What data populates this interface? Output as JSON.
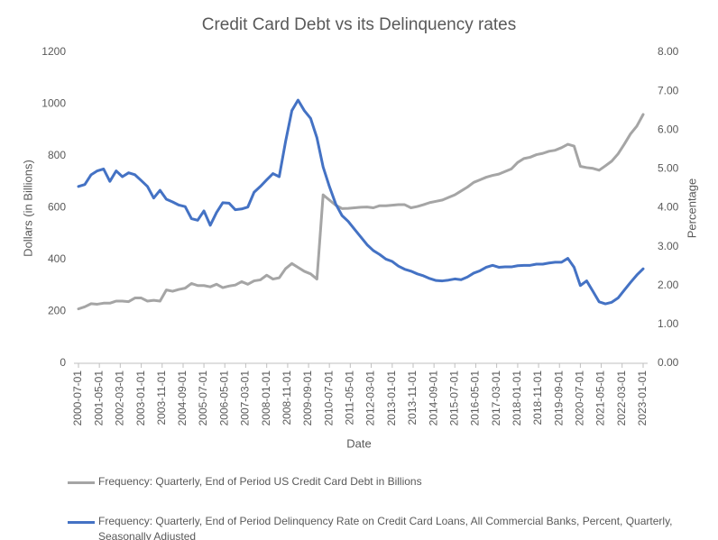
{
  "chart_data": {
    "type": "line",
    "title": "Credit Card Debt vs its Delinquency rates",
    "x_label": "Date",
    "y_label": "Dollars (in Billions)",
    "y2_label": "Percentage",
    "x": [
      "2000-07-01",
      "2000-10-01",
      "2001-01-01",
      "2001-04-01",
      "2001-07-01",
      "2001-10-01",
      "2002-01-01",
      "2002-04-01",
      "2002-07-01",
      "2002-10-01",
      "2003-01-01",
      "2003-04-01",
      "2003-07-01",
      "2003-10-01",
      "2004-01-01",
      "2004-04-01",
      "2004-07-01",
      "2004-10-01",
      "2005-01-01",
      "2005-04-01",
      "2005-07-01",
      "2005-10-01",
      "2006-01-01",
      "2006-04-01",
      "2006-07-01",
      "2006-10-01",
      "2007-01-01",
      "2007-04-01",
      "2007-07-01",
      "2007-10-01",
      "2008-01-01",
      "2008-04-01",
      "2008-07-01",
      "2008-10-01",
      "2009-01-01",
      "2009-04-01",
      "2009-07-01",
      "2009-10-01",
      "2010-01-01",
      "2010-04-01",
      "2010-07-01",
      "2010-10-01",
      "2011-01-01",
      "2011-04-01",
      "2011-07-01",
      "2011-10-01",
      "2012-01-01",
      "2012-04-01",
      "2012-07-01",
      "2012-10-01",
      "2013-01-01",
      "2013-04-01",
      "2013-07-01",
      "2013-10-01",
      "2014-01-01",
      "2014-04-01",
      "2014-07-01",
      "2014-10-01",
      "2015-01-01",
      "2015-04-01",
      "2015-07-01",
      "2015-10-01",
      "2016-01-01",
      "2016-04-01",
      "2016-07-01",
      "2016-10-01",
      "2017-01-01",
      "2017-04-01",
      "2017-07-01",
      "2017-10-01",
      "2018-01-01",
      "2018-04-01",
      "2018-07-01",
      "2018-10-01",
      "2019-01-01",
      "2019-04-01",
      "2019-07-01",
      "2019-10-01",
      "2020-01-01",
      "2020-04-01",
      "2020-07-01",
      "2020-10-01",
      "2021-01-01",
      "2021-04-01",
      "2021-07-01",
      "2021-10-01",
      "2022-01-01",
      "2022-04-01",
      "2022-07-01",
      "2022-10-01",
      "2023-01-01"
    ],
    "xlim": [
      "2000-07-01",
      "2023-01-01"
    ],
    "xticks": [
      "2000-07-01",
      "2001-05-01",
      "2002-03-01",
      "2003-01-01",
      "2003-11-01",
      "2004-09-01",
      "2005-07-01",
      "2006-05-01",
      "2007-03-01",
      "2008-01-01",
      "2008-11-01",
      "2009-09-01",
      "2010-07-01",
      "2011-05-01",
      "2012-03-01",
      "2013-01-01",
      "2013-11-01",
      "2014-09-01",
      "2015-07-01",
      "2016-05-01",
      "2017-03-01",
      "2018-01-01",
      "2018-11-01",
      "2019-09-01",
      "2020-07-01",
      "2021-05-01",
      "2022-03-01",
      "2023-01-01"
    ],
    "ylim": [
      0,
      1200
    ],
    "yticks": [
      0,
      200,
      400,
      600,
      800,
      1000,
      1200
    ],
    "y2lim": [
      0,
      8
    ],
    "y2ticks": [
      {
        "value": 0,
        "label": "0.00"
      },
      {
        "value": 1,
        "label": "1.00"
      },
      {
        "value": 2,
        "label": "2.00"
      },
      {
        "value": 3,
        "label": "3.00"
      },
      {
        "value": 4,
        "label": "4.00"
      },
      {
        "value": 5,
        "label": "5.00"
      },
      {
        "value": 6,
        "label": "6.00"
      },
      {
        "value": 7,
        "label": "7.00"
      },
      {
        "value": 8,
        "label": "8.00"
      }
    ],
    "grid": false,
    "legend": "bottom",
    "series": [
      {
        "name": "Frequency: Quarterly, End of Period US Credit Card Debt in Billions",
        "color": "#a5a5a5",
        "values": [
          210,
          218,
          230,
          228,
          232,
          232,
          240,
          240,
          238,
          252,
          252,
          240,
          243,
          240,
          283,
          278,
          285,
          290,
          308,
          300,
          300,
          295,
          305,
          292,
          298,
          302,
          315,
          305,
          318,
          322,
          340,
          325,
          330,
          365,
          385,
          370,
          355,
          345,
          325,
          650,
          630,
          610,
          597,
          598,
          600,
          602,
          603,
          600,
          608,
          608,
          610,
          612,
          612,
          600,
          605,
          612,
          620,
          625,
          630,
          640,
          650,
          665,
          680,
          698,
          708,
          718,
          725,
          730,
          740,
          750,
          775,
          790,
          795,
          805,
          810,
          818,
          822,
          832,
          845,
          838,
          760,
          755,
          752,
          745,
          762,
          780,
          808,
          845,
          885,
          915,
          960
        ]
      },
      {
        "name": "Frequency: Quarterly, End of Period Delinquency Rate on Credit Card Loans, All Commercial Banks, Percent, Quarterly, Seasonally Adjusted",
        "color": "#4472c4",
        "axis": "y2",
        "values": [
          4.55,
          4.6,
          4.85,
          4.95,
          5.0,
          4.68,
          4.95,
          4.8,
          4.9,
          4.85,
          4.7,
          4.55,
          4.25,
          4.45,
          4.22,
          4.15,
          4.07,
          4.03,
          3.72,
          3.68,
          3.92,
          3.55,
          3.88,
          4.13,
          4.12,
          3.95,
          3.97,
          4.02,
          4.4,
          4.55,
          4.72,
          4.88,
          4.8,
          5.7,
          6.5,
          6.77,
          6.5,
          6.3,
          5.8,
          5.05,
          4.55,
          4.1,
          3.8,
          3.65,
          3.45,
          3.25,
          3.05,
          2.9,
          2.8,
          2.68,
          2.62,
          2.5,
          2.42,
          2.37,
          2.3,
          2.25,
          2.18,
          2.13,
          2.12,
          2.14,
          2.17,
          2.15,
          2.22,
          2.32,
          2.38,
          2.47,
          2.52,
          2.47,
          2.48,
          2.48,
          2.51,
          2.52,
          2.52,
          2.55,
          2.55,
          2.58,
          2.6,
          2.6,
          2.7,
          2.47,
          2.0,
          2.12,
          1.85,
          1.58,
          1.53,
          1.57,
          1.68,
          1.88,
          2.08,
          2.27,
          2.43
        ]
      }
    ]
  }
}
